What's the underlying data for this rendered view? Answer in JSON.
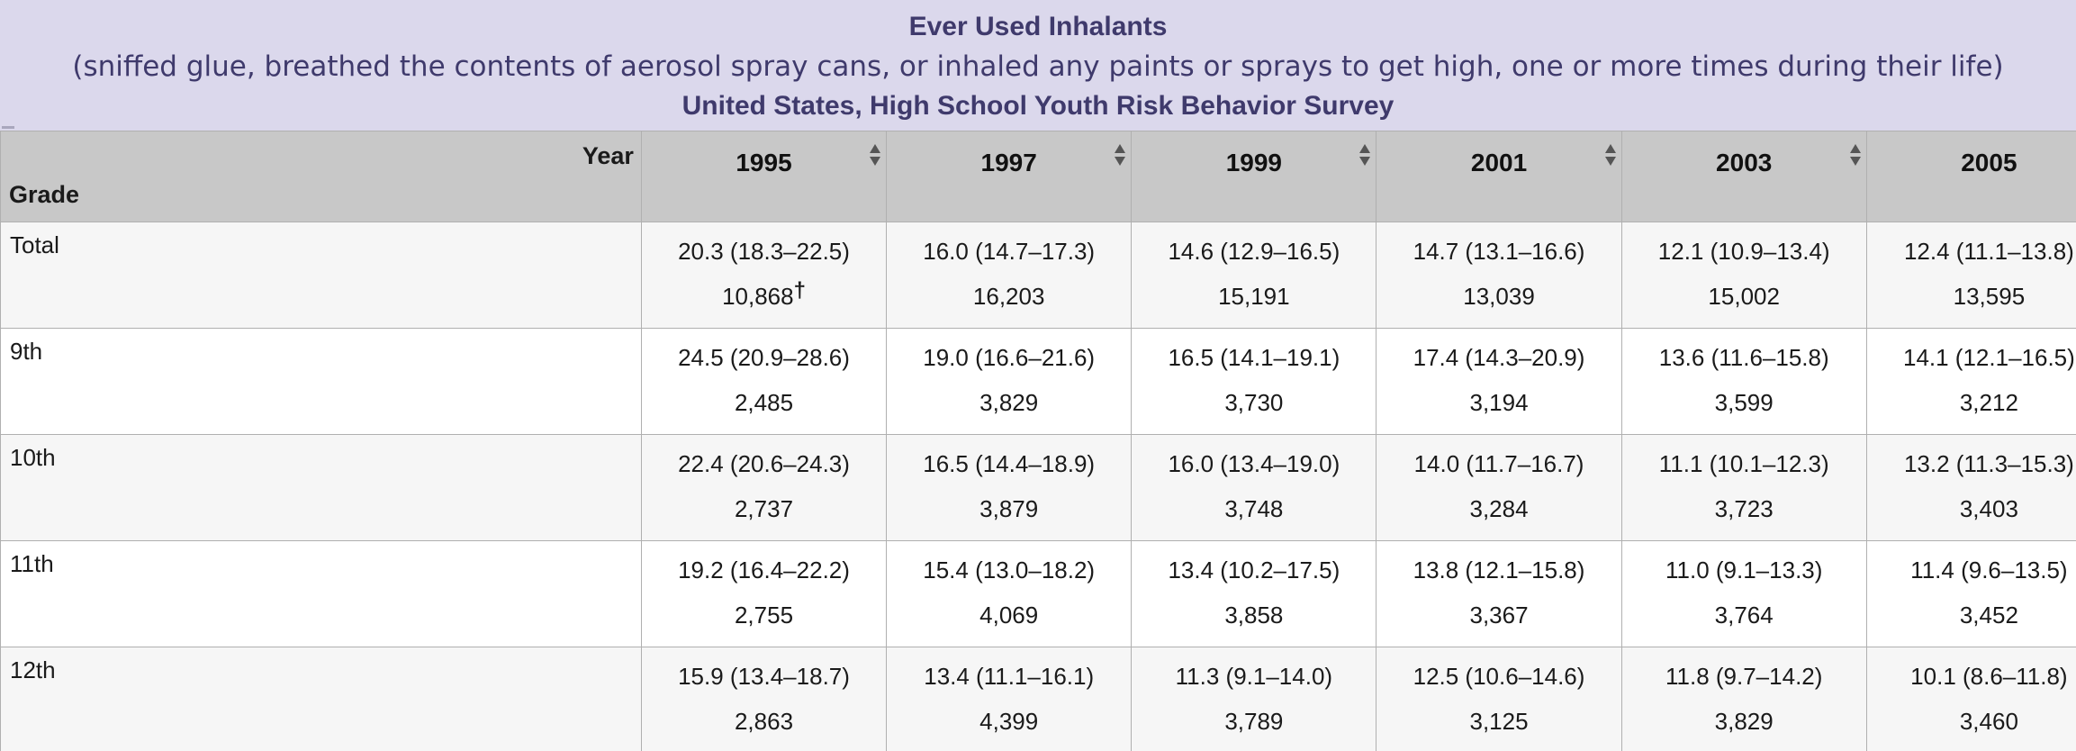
{
  "header": {
    "title": "Ever Used Inhalants",
    "subtitle": "(sniffed glue, breathed the contents of aerosol spray cans, or inhaled any paints or sprays to get high, one or more times during their life)",
    "source": "United States, High School Youth Risk Behavior Survey"
  },
  "table": {
    "corner_year_label": "Year",
    "corner_grade_label": "Grade",
    "years": [
      "1995",
      "1997",
      "1999",
      "2001",
      "2003",
      "2005"
    ],
    "rows": [
      {
        "label": "Total",
        "cells": [
          {
            "estimate": "20.3 (18.3–22.5)",
            "n": "10,868",
            "note": "†"
          },
          {
            "estimate": "16.0 (14.7–17.3)",
            "n": "16,203",
            "note": ""
          },
          {
            "estimate": "14.6 (12.9–16.5)",
            "n": "15,191",
            "note": ""
          },
          {
            "estimate": "14.7 (13.1–16.6)",
            "n": "13,039",
            "note": ""
          },
          {
            "estimate": "12.1 (10.9–13.4)",
            "n": "15,002",
            "note": ""
          },
          {
            "estimate": "12.4 (11.1–13.8)",
            "n": "13,595",
            "note": ""
          }
        ]
      },
      {
        "label": "9th",
        "cells": [
          {
            "estimate": "24.5 (20.9–28.6)",
            "n": "2,485",
            "note": ""
          },
          {
            "estimate": "19.0 (16.6–21.6)",
            "n": "3,829",
            "note": ""
          },
          {
            "estimate": "16.5 (14.1–19.1)",
            "n": "3,730",
            "note": ""
          },
          {
            "estimate": "17.4 (14.3–20.9)",
            "n": "3,194",
            "note": ""
          },
          {
            "estimate": "13.6 (11.6–15.8)",
            "n": "3,599",
            "note": ""
          },
          {
            "estimate": "14.1 (12.1–16.5)",
            "n": "3,212",
            "note": ""
          }
        ]
      },
      {
        "label": "10th",
        "cells": [
          {
            "estimate": "22.4 (20.6–24.3)",
            "n": "2,737",
            "note": ""
          },
          {
            "estimate": "16.5 (14.4–18.9)",
            "n": "3,879",
            "note": ""
          },
          {
            "estimate": "16.0 (13.4–19.0)",
            "n": "3,748",
            "note": ""
          },
          {
            "estimate": "14.0 (11.7–16.7)",
            "n": "3,284",
            "note": ""
          },
          {
            "estimate": "11.1 (10.1–12.3)",
            "n": "3,723",
            "note": ""
          },
          {
            "estimate": "13.2 (11.3–15.3)",
            "n": "3,403",
            "note": ""
          }
        ]
      },
      {
        "label": "11th",
        "cells": [
          {
            "estimate": "19.2 (16.4–22.2)",
            "n": "2,755",
            "note": ""
          },
          {
            "estimate": "15.4 (13.0–18.2)",
            "n": "4,069",
            "note": ""
          },
          {
            "estimate": "13.4 (10.2–17.5)",
            "n": "3,858",
            "note": ""
          },
          {
            "estimate": "13.8 (12.1–15.8)",
            "n": "3,367",
            "note": ""
          },
          {
            "estimate": "11.0 (9.1–13.3)",
            "n": "3,764",
            "note": ""
          },
          {
            "estimate": "11.4 (9.6–13.5)",
            "n": "3,452",
            "note": ""
          }
        ]
      },
      {
        "label": "12th",
        "cells": [
          {
            "estimate": "15.9 (13.4–18.7)",
            "n": "2,863",
            "note": ""
          },
          {
            "estimate": "13.4 (11.1–16.1)",
            "n": "4,399",
            "note": ""
          },
          {
            "estimate": "11.3 (9.1–14.0)",
            "n": "3,789",
            "note": ""
          },
          {
            "estimate": "12.5 (10.6–14.6)",
            "n": "3,125",
            "note": ""
          },
          {
            "estimate": "11.8 (9.7–14.2)",
            "n": "3,829",
            "note": ""
          },
          {
            "estimate": "10.1 (8.6–11.8)",
            "n": "3,460",
            "note": ""
          }
        ]
      }
    ]
  },
  "colors": {
    "header_bg": "#dbd8ec",
    "header_text": "#3f3a6c",
    "column_header_bg": "#c8c8c8",
    "row_alt_bg": "#f6f6f6"
  },
  "icons": {
    "sort": "sort-up-down-icon"
  }
}
